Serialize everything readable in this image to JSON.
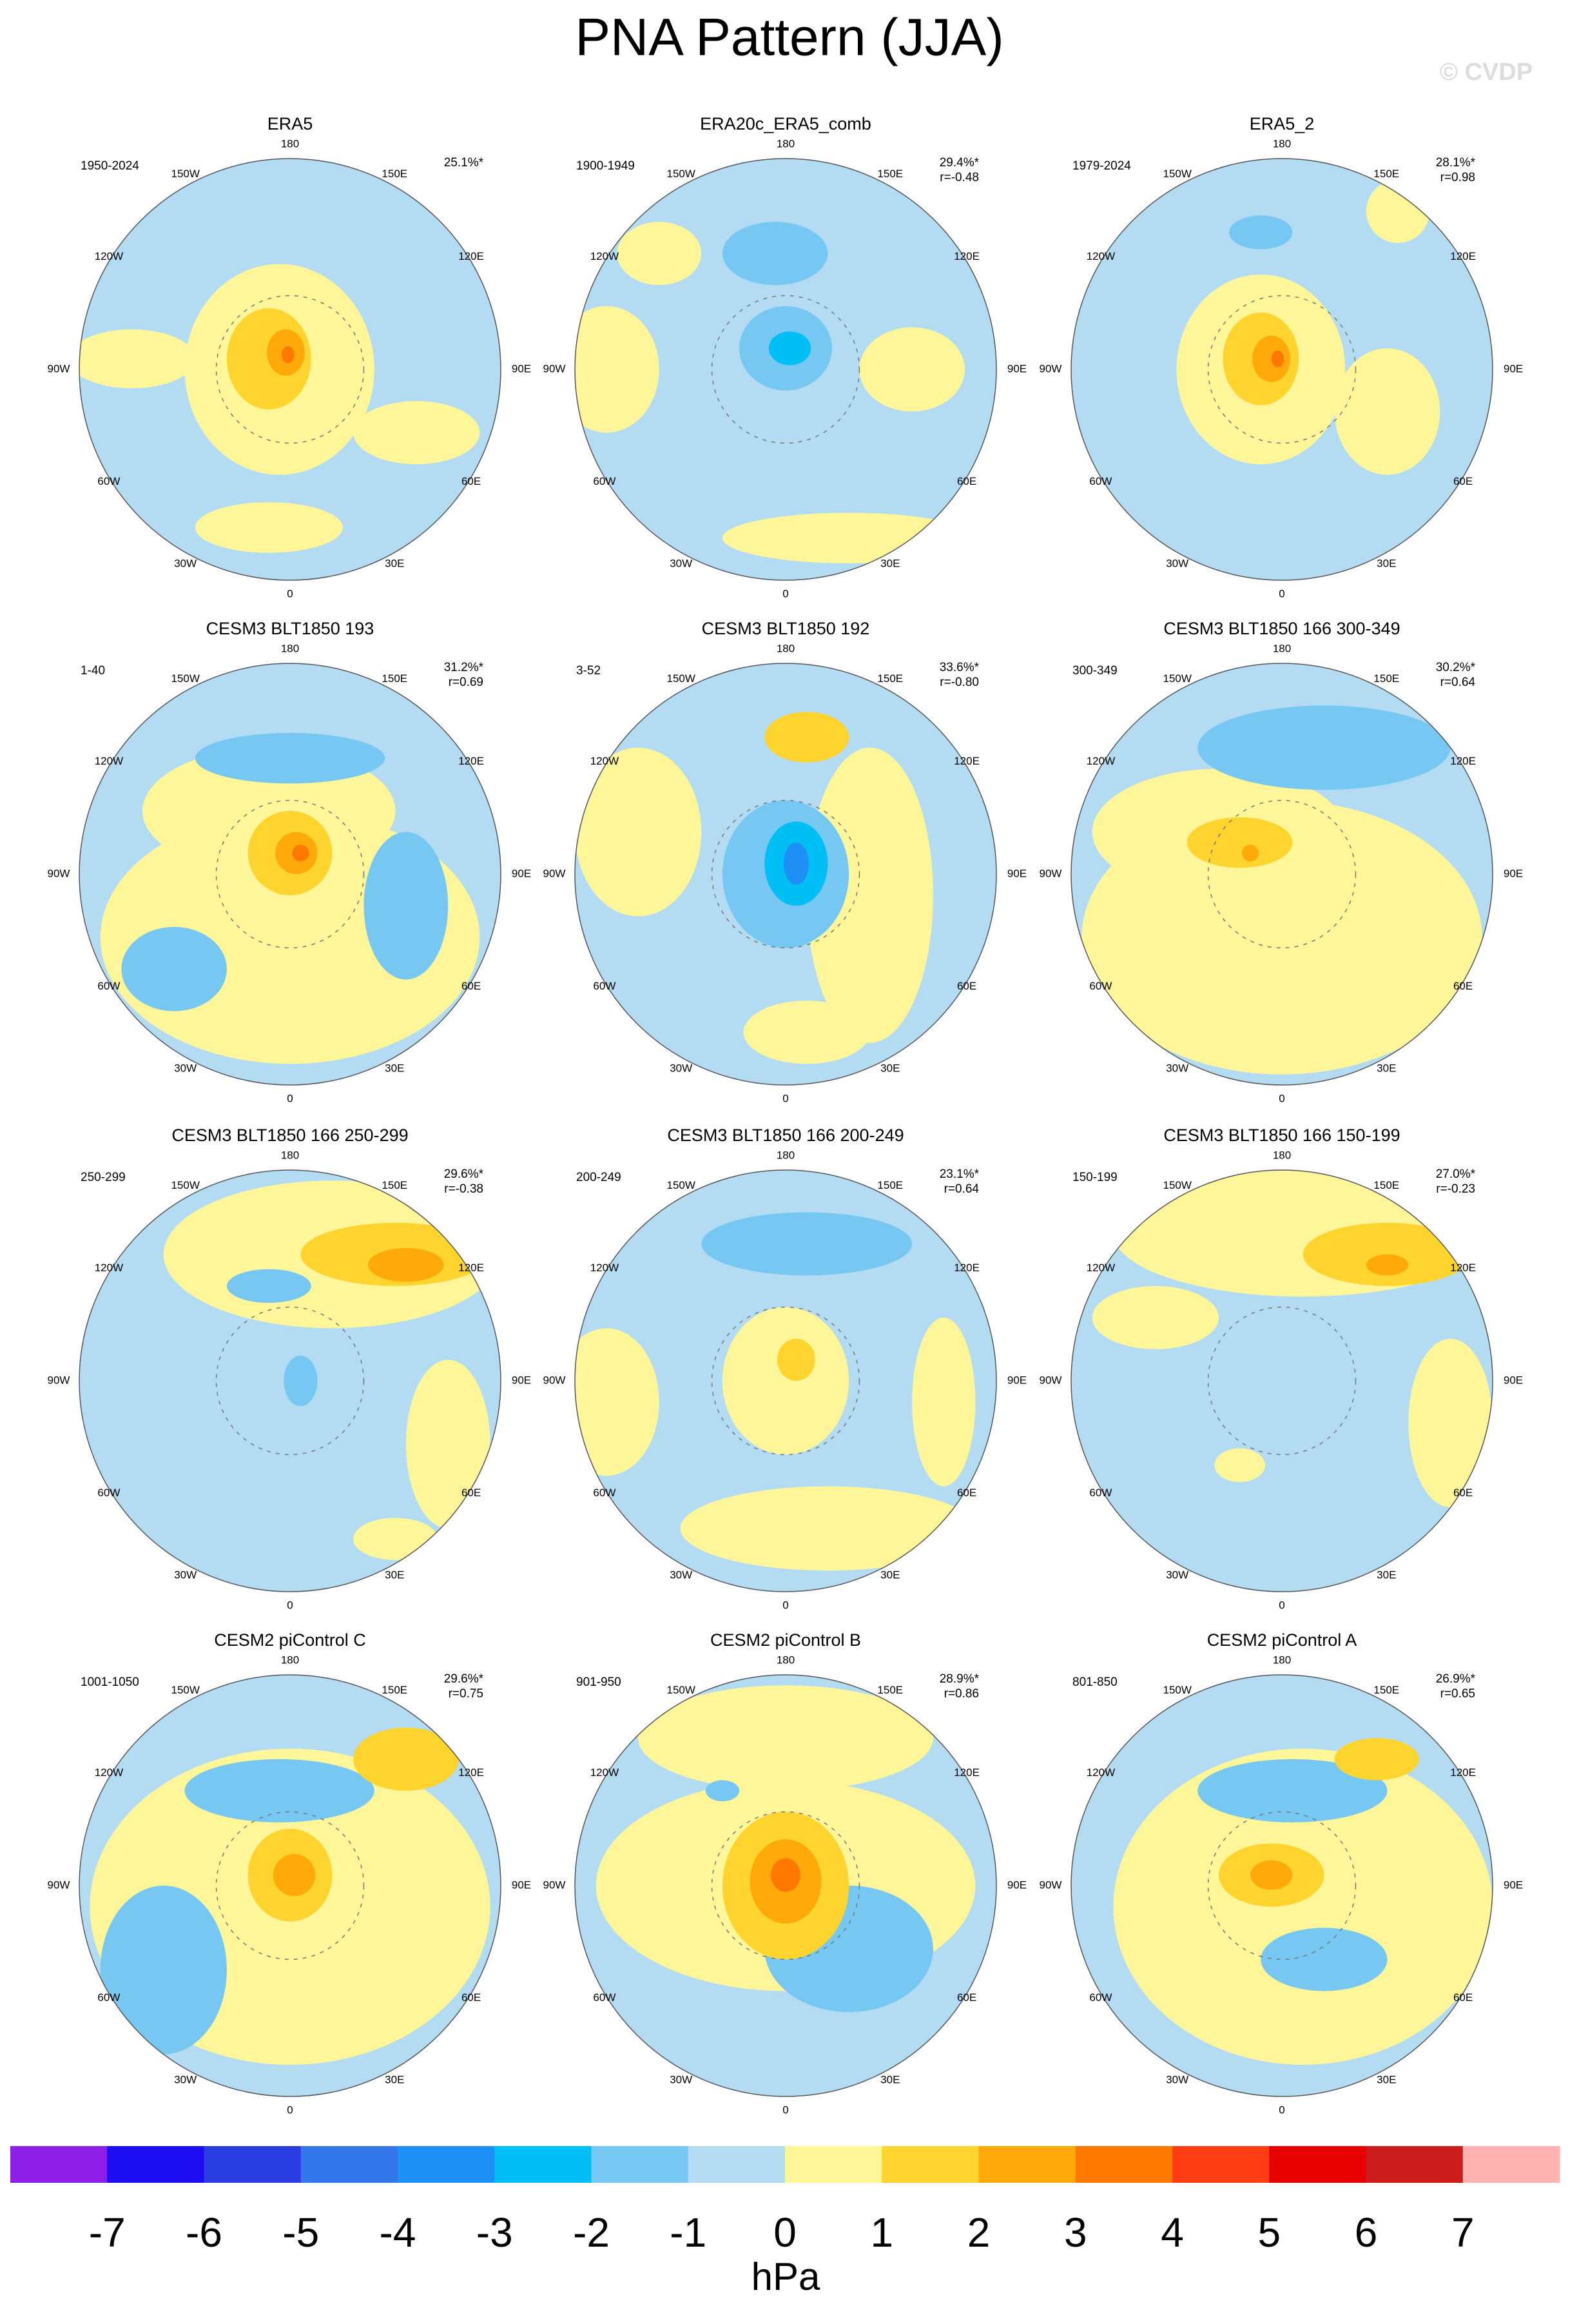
{
  "title": "PNA Pattern (JJA)",
  "watermark": "© CVDP",
  "longitude_labels": [
    "180",
    "150E",
    "120E",
    "90E",
    "60E",
    "30E",
    "0",
    "30W",
    "60W",
    "90W",
    "120W",
    "150W"
  ],
  "panels": [
    {
      "title": "ERA5",
      "period": "1950-2024",
      "pct": "25.1%*"
    },
    {
      "title": "ERA20c_ERA5_comb",
      "period": "1900-1949",
      "pct": "29.4%*",
      "r": "r=-0.48"
    },
    {
      "title": "ERA5_2",
      "period": "1979-2024",
      "pct": "28.1%*",
      "r": "r=0.98"
    },
    {
      "title": "CESM3 BLT1850 193",
      "period": "1-40",
      "pct": "31.2%*",
      "r": "r=0.69"
    },
    {
      "title": "CESM3 BLT1850 192",
      "period": "3-52",
      "pct": "33.6%*",
      "r": "r=-0.80"
    },
    {
      "title": "CESM3 BLT1850 166 300-349",
      "period": "300-349",
      "pct": "30.2%*",
      "r": "r=0.64"
    },
    {
      "title": "CESM3 BLT1850 166 250-299",
      "period": "250-299",
      "pct": "29.6%*",
      "r": "r=-0.38"
    },
    {
      "title": "CESM3 BLT1850 166 200-249",
      "period": "200-249",
      "pct": "23.1%*",
      "r": "r=0.64"
    },
    {
      "title": "CESM3 BLT1850 166 150-199",
      "period": "150-199",
      "pct": "27.0%*",
      "r": "r=-0.23"
    },
    {
      "title": "CESM2 piControl C",
      "period": "1001-1050",
      "pct": "29.6%*",
      "r": "r=0.75"
    },
    {
      "title": "CESM2 piControl B",
      "period": "901-950",
      "pct": "28.9%*",
      "r": "r=0.86"
    },
    {
      "title": "CESM2 piControl A",
      "period": "801-850",
      "pct": "26.9%*",
      "r": "r=0.65"
    }
  ],
  "colorbar": {
    "colors": [
      "#8d1ee8",
      "#1c0cf2",
      "#2a3de3",
      "#3377eb",
      "#1e90f5",
      "#00bff5",
      "#76c8f2",
      "#b3dcf2",
      "#fff599",
      "#ffd42e",
      "#ffaa0a",
      "#ff7800",
      "#ff3c14",
      "#e60000",
      "#cc1c1c",
      "#ffb3b3"
    ],
    "ticks": [
      -7,
      -6,
      -5,
      -4,
      -3,
      -2,
      -1,
      0,
      1,
      2,
      3,
      4,
      5,
      6,
      7
    ],
    "unit": "hPa"
  }
}
